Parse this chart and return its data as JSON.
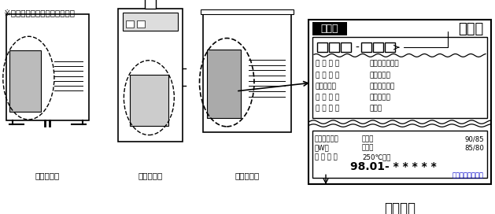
{
  "title": "※製品名、製造年月の確認方法",
  "bg_color": "#ffffff",
  "border_color": "#000000",
  "seal_label": "シール",
  "product_name_label": "製品名",
  "spec_lines": [
    [
      "規 格 名 称",
      "石油小形給湯機"
    ],
    [
      "燃 焼 方 式",
      "圧力噴霧式"
    ],
    [
      "給排気方式",
      "屋外用開放形"
    ],
    [
      "給 水 方 式",
      "水道直結式"
    ],
    [
      "加 熱 形 態",
      "瞬間形"
    ]
  ],
  "power_lines": [
    [
      "定格消費電力",
      "点火時",
      "90/85"
    ],
    [
      "（W）",
      "燃焼時",
      "85/80"
    ],
    [
      "排 気 温 度",
      "250℃以下",
      ""
    ]
  ],
  "serial_number": "98.01- * * * * *",
  "company_name": "株式会社ノーリツ",
  "manufacturing_year": "製造年月",
  "unit_labels": [
    "屋外壁掛形",
    "屋内据置形",
    "屋外据置形"
  ],
  "text_color": "#000000",
  "blue_color": "#0000cc",
  "seal_bg": "#000000",
  "seal_text_color": "#ffffff"
}
